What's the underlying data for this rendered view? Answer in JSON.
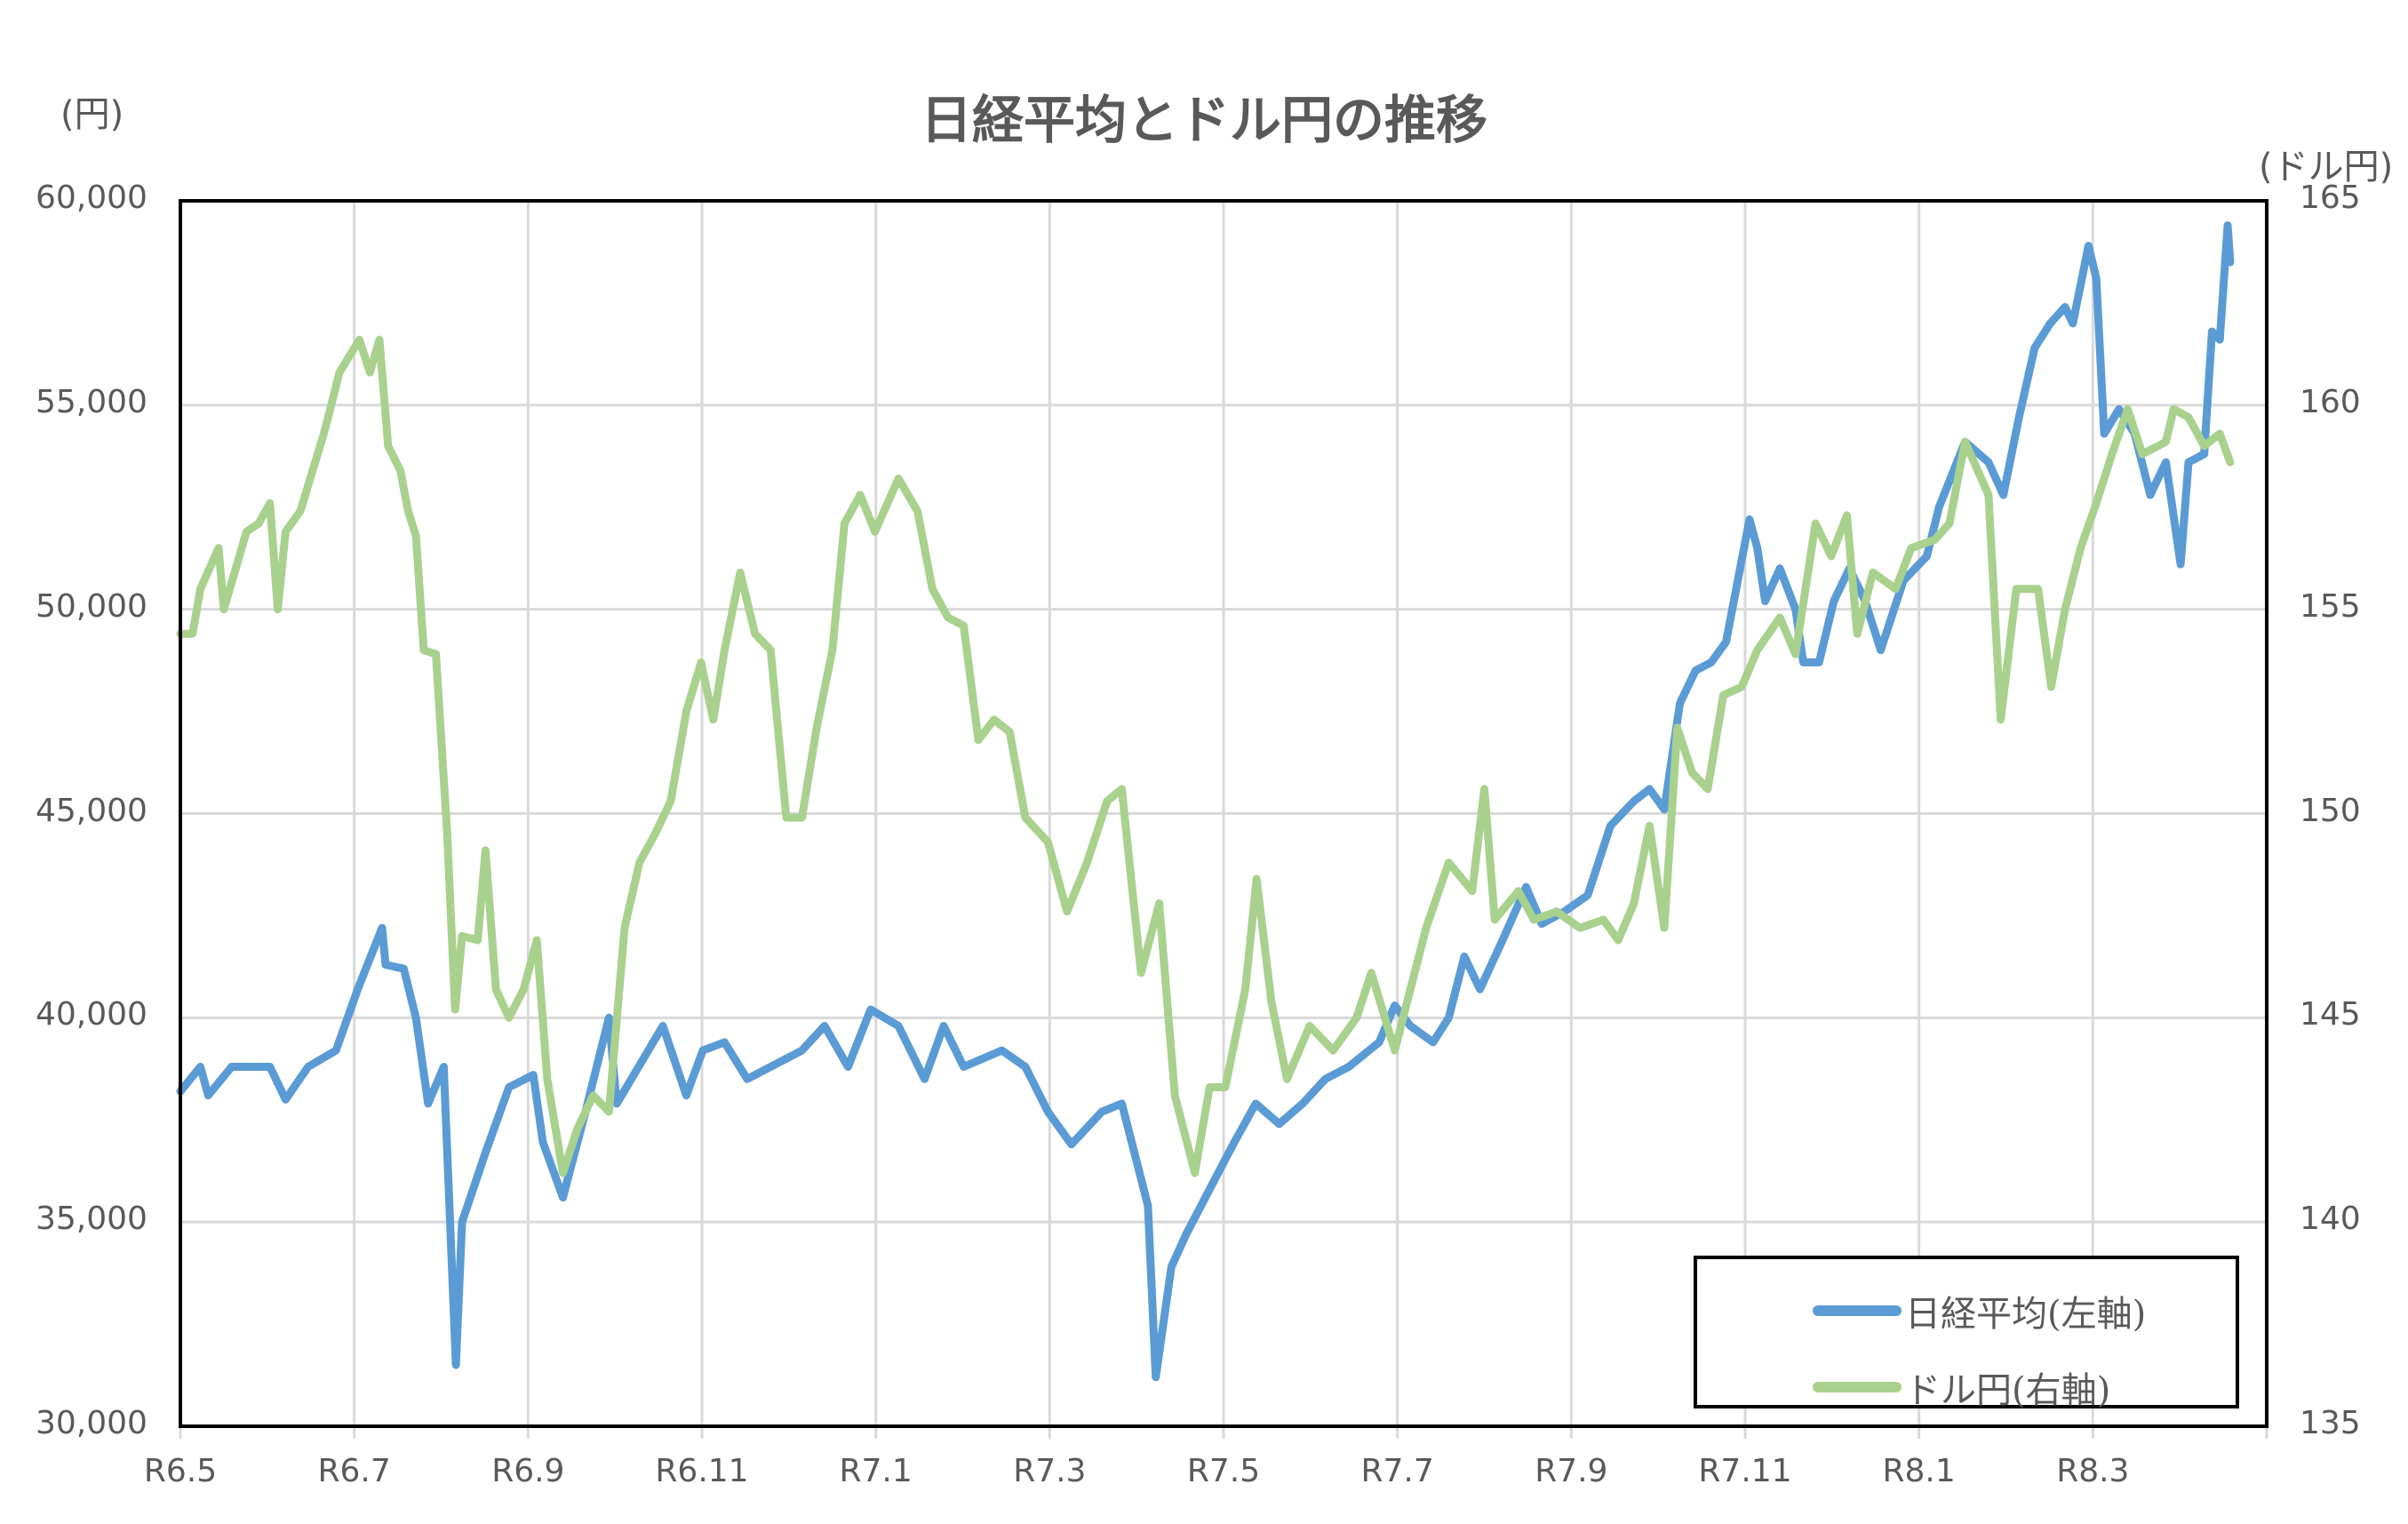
{
  "chart": {
    "title": "日経平均とドル円の推移",
    "left_axis_unit": "(円)",
    "right_axis_unit": "(ドル円)",
    "left_ticks": [
      "60,000",
      "55,000",
      "50,000",
      "45,000",
      "40,000",
      "35,000",
      "30,000"
    ],
    "right_ticks": [
      "165",
      "160",
      "155",
      "150",
      "145",
      "140",
      "135"
    ],
    "x_ticks": [
      "R6.5",
      "R6.7",
      "R6.9",
      "R6.11",
      "R7.1",
      "R7.3",
      "R7.5",
      "R7.7",
      "R7.9",
      "R7.11",
      "R8.1",
      "R8.3"
    ],
    "legend": [
      {
        "label": "日経平均(左軸)",
        "color": "#5B9BD5"
      },
      {
        "label": "ドル円(右軸)",
        "color": "#A9D18E"
      }
    ]
  },
  "chart_data": {
    "type": "line",
    "title": "日経平均とドル円の推移",
    "xlabel": "",
    "ylabel": "(円)",
    "y2label": "(ドル円)",
    "categories": [
      "R6.5",
      "R6.7",
      "R6.9",
      "R6.11",
      "R7.1",
      "R7.3",
      "R7.5",
      "R7.7",
      "R7.9",
      "R7.11",
      "R8.1",
      "R8.3"
    ],
    "x_unit": "months since R6.5 (tick every 2 months)",
    "xlim": [
      0,
      24
    ],
    "ylim": [
      30000,
      60000
    ],
    "y2lim": [
      135,
      165
    ],
    "grid": true,
    "legend_position": "lower right",
    "series": [
      {
        "name": "日経平均(左軸)",
        "axis": "left",
        "color": "#5B9BD5",
        "points": [
          [
            0,
            38200
          ],
          [
            0.23,
            38800
          ],
          [
            0.32,
            38100
          ],
          [
            0.59,
            38800
          ],
          [
            1.03,
            38800
          ],
          [
            1.21,
            38000
          ],
          [
            1.47,
            38800
          ],
          [
            1.79,
            39200
          ],
          [
            2.04,
            40700
          ],
          [
            2.32,
            42200
          ],
          [
            2.36,
            41300
          ],
          [
            2.57,
            41200
          ],
          [
            2.71,
            40000
          ],
          [
            2.85,
            37900
          ],
          [
            3.03,
            38800
          ],
          [
            3.17,
            31500
          ],
          [
            3.24,
            35000
          ],
          [
            3.51,
            36700
          ],
          [
            3.78,
            38300
          ],
          [
            4.06,
            38600
          ],
          [
            4.17,
            36950
          ],
          [
            4.4,
            35600
          ],
          [
            4.66,
            37700
          ],
          [
            4.93,
            40000
          ],
          [
            5.02,
            37900
          ],
          [
            5.55,
            39800
          ],
          [
            5.82,
            38100
          ],
          [
            6.01,
            39200
          ],
          [
            6.26,
            39400
          ],
          [
            6.52,
            38500
          ],
          [
            6.79,
            38800
          ],
          [
            7.15,
            39200
          ],
          [
            7.41,
            39800
          ],
          [
            7.68,
            38800
          ],
          [
            7.94,
            40200
          ],
          [
            8.26,
            39800
          ],
          [
            8.56,
            38500
          ],
          [
            8.78,
            39800
          ],
          [
            9.01,
            38800
          ],
          [
            9.45,
            39200
          ],
          [
            9.72,
            38800
          ],
          [
            9.98,
            37700
          ],
          [
            10.25,
            36900
          ],
          [
            10.6,
            37700
          ],
          [
            10.83,
            37900
          ],
          [
            11.13,
            35400
          ],
          [
            11.22,
            31200
          ],
          [
            11.4,
            33900
          ],
          [
            11.57,
            34700
          ],
          [
            11.84,
            35800
          ],
          [
            12.11,
            36900
          ],
          [
            12.37,
            37900
          ],
          [
            12.64,
            37400
          ],
          [
            12.91,
            37900
          ],
          [
            13.17,
            38500
          ],
          [
            13.44,
            38800
          ],
          [
            13.79,
            39400
          ],
          [
            13.97,
            40300
          ],
          [
            14.15,
            39800
          ],
          [
            14.41,
            39400
          ],
          [
            14.59,
            40000
          ],
          [
            14.77,
            41500
          ],
          [
            14.95,
            40700
          ],
          [
            15.21,
            41900
          ],
          [
            15.48,
            43200
          ],
          [
            15.66,
            42300
          ],
          [
            15.92,
            42600
          ],
          [
            16.19,
            43000
          ],
          [
            16.45,
            44700
          ],
          [
            16.72,
            45300
          ],
          [
            16.9,
            45600
          ],
          [
            17.07,
            45100
          ],
          [
            17.25,
            47700
          ],
          [
            17.43,
            48500
          ],
          [
            17.61,
            48700
          ],
          [
            17.78,
            49200
          ],
          [
            18.05,
            52200
          ],
          [
            18.14,
            51500
          ],
          [
            18.23,
            50200
          ],
          [
            18.4,
            51000
          ],
          [
            18.58,
            50000
          ],
          [
            18.67,
            48700
          ],
          [
            18.85,
            48700
          ],
          [
            19.02,
            50200
          ],
          [
            19.2,
            51000
          ],
          [
            19.38,
            50200
          ],
          [
            19.56,
            49000
          ],
          [
            19.82,
            50700
          ],
          [
            20.09,
            51300
          ],
          [
            20.23,
            52500
          ],
          [
            20.53,
            54100
          ],
          [
            20.8,
            53600
          ],
          [
            20.97,
            52800
          ],
          [
            21.15,
            54700
          ],
          [
            21.33,
            56400
          ],
          [
            21.51,
            57000
          ],
          [
            21.68,
            57400
          ],
          [
            21.77,
            57000
          ],
          [
            21.95,
            58900
          ],
          [
            22.04,
            58100
          ],
          [
            22.13,
            54300
          ],
          [
            22.3,
            54900
          ],
          [
            22.48,
            54300
          ],
          [
            22.66,
            52800
          ],
          [
            22.84,
            53600
          ],
          [
            23.01,
            51100
          ],
          [
            23.1,
            53600
          ],
          [
            23.28,
            53800
          ],
          [
            23.37,
            56800
          ],
          [
            23.46,
            56600
          ],
          [
            23.55,
            59400
          ],
          [
            23.58,
            58500
          ]
        ]
      },
      {
        "name": "ドル円(右軸)",
        "axis": "right",
        "color": "#A9D18E",
        "points": [
          [
            0,
            154.4
          ],
          [
            0.14,
            154.4
          ],
          [
            0.23,
            155.5
          ],
          [
            0.44,
            156.5
          ],
          [
            0.5,
            155.0
          ],
          [
            0.76,
            156.9
          ],
          [
            0.9,
            157.1
          ],
          [
            1.03,
            157.6
          ],
          [
            1.12,
            155.0
          ],
          [
            1.21,
            156.9
          ],
          [
            1.38,
            157.4
          ],
          [
            1.65,
            159.3
          ],
          [
            1.7,
            159.7
          ],
          [
            1.83,
            160.8
          ],
          [
            2.06,
            161.6
          ],
          [
            2.18,
            160.8
          ],
          [
            2.29,
            161.6
          ],
          [
            2.39,
            159.0
          ],
          [
            2.53,
            158.4
          ],
          [
            2.62,
            157.4
          ],
          [
            2.71,
            156.8
          ],
          [
            2.8,
            154.0
          ],
          [
            2.94,
            153.9
          ],
          [
            3.07,
            149.5
          ],
          [
            3.16,
            145.2
          ],
          [
            3.24,
            147.0
          ],
          [
            3.42,
            146.9
          ],
          [
            3.51,
            149.1
          ],
          [
            3.63,
            145.7
          ],
          [
            3.78,
            145.0
          ],
          [
            3.95,
            145.7
          ],
          [
            4.1,
            146.9
          ],
          [
            4.22,
            143.5
          ],
          [
            4.4,
            141.2
          ],
          [
            4.57,
            142.3
          ],
          [
            4.75,
            143.1
          ],
          [
            4.93,
            142.7
          ],
          [
            5.11,
            147.2
          ],
          [
            5.28,
            148.8
          ],
          [
            5.46,
            149.5
          ],
          [
            5.64,
            150.3
          ],
          [
            5.82,
            152.5
          ],
          [
            5.99,
            153.7
          ],
          [
            6.13,
            152.3
          ],
          [
            6.26,
            154.0
          ],
          [
            6.44,
            155.9
          ],
          [
            6.61,
            154.4
          ],
          [
            6.79,
            154.0
          ],
          [
            6.97,
            149.9
          ],
          [
            7.15,
            149.9
          ],
          [
            7.32,
            152.1
          ],
          [
            7.5,
            154.0
          ],
          [
            7.64,
            157.1
          ],
          [
            7.82,
            157.8
          ],
          [
            7.99,
            156.9
          ],
          [
            8.26,
            158.2
          ],
          [
            8.48,
            157.4
          ],
          [
            8.65,
            155.5
          ],
          [
            8.83,
            154.8
          ],
          [
            9.01,
            154.6
          ],
          [
            9.18,
            151.8
          ],
          [
            9.36,
            152.3
          ],
          [
            9.54,
            152.0
          ],
          [
            9.72,
            149.9
          ],
          [
            9.98,
            149.3
          ],
          [
            10.2,
            147.6
          ],
          [
            10.43,
            148.8
          ],
          [
            10.66,
            150.3
          ],
          [
            10.83,
            150.6
          ],
          [
            11.05,
            146.1
          ],
          [
            11.26,
            147.8
          ],
          [
            11.44,
            143.1
          ],
          [
            11.67,
            141.2
          ],
          [
            11.84,
            143.3
          ],
          [
            12.02,
            143.3
          ],
          [
            12.25,
            145.7
          ],
          [
            12.38,
            148.4
          ],
          [
            12.55,
            145.4
          ],
          [
            12.73,
            143.5
          ],
          [
            12.99,
            144.8
          ],
          [
            13.26,
            144.2
          ],
          [
            13.53,
            145.0
          ],
          [
            13.7,
            146.1
          ],
          [
            13.97,
            144.2
          ],
          [
            14.15,
            145.7
          ],
          [
            14.33,
            147.2
          ],
          [
            14.59,
            148.8
          ],
          [
            14.86,
            148.1
          ],
          [
            15.0,
            150.6
          ],
          [
            15.12,
            147.4
          ],
          [
            15.39,
            148.1
          ],
          [
            15.57,
            147.4
          ],
          [
            15.83,
            147.6
          ],
          [
            16.1,
            147.2
          ],
          [
            16.37,
            147.4
          ],
          [
            16.54,
            146.9
          ],
          [
            16.72,
            147.8
          ],
          [
            16.9,
            149.7
          ],
          [
            17.07,
            147.2
          ],
          [
            17.22,
            152.1
          ],
          [
            17.39,
            151.0
          ],
          [
            17.57,
            150.6
          ],
          [
            17.75,
            152.9
          ],
          [
            17.96,
            153.1
          ],
          [
            18.14,
            154.0
          ],
          [
            18.4,
            154.8
          ],
          [
            18.58,
            153.9
          ],
          [
            18.81,
            157.1
          ],
          [
            18.99,
            156.3
          ],
          [
            19.17,
            157.3
          ],
          [
            19.29,
            154.4
          ],
          [
            19.47,
            155.9
          ],
          [
            19.73,
            155.5
          ],
          [
            19.91,
            156.5
          ],
          [
            20.18,
            156.7
          ],
          [
            20.35,
            157.1
          ],
          [
            20.53,
            159.1
          ],
          [
            20.8,
            157.8
          ],
          [
            20.94,
            152.3
          ],
          [
            21.12,
            155.5
          ],
          [
            21.37,
            155.5
          ],
          [
            21.52,
            153.1
          ],
          [
            21.68,
            155.0
          ],
          [
            21.86,
            156.5
          ],
          [
            22.04,
            157.6
          ],
          [
            22.22,
            158.8
          ],
          [
            22.4,
            159.9
          ],
          [
            22.57,
            158.8
          ],
          [
            22.84,
            159.1
          ],
          [
            22.93,
            159.9
          ],
          [
            23.1,
            159.7
          ],
          [
            23.28,
            159.0
          ],
          [
            23.46,
            159.3
          ],
          [
            23.58,
            158.6
          ]
        ]
      }
    ]
  }
}
